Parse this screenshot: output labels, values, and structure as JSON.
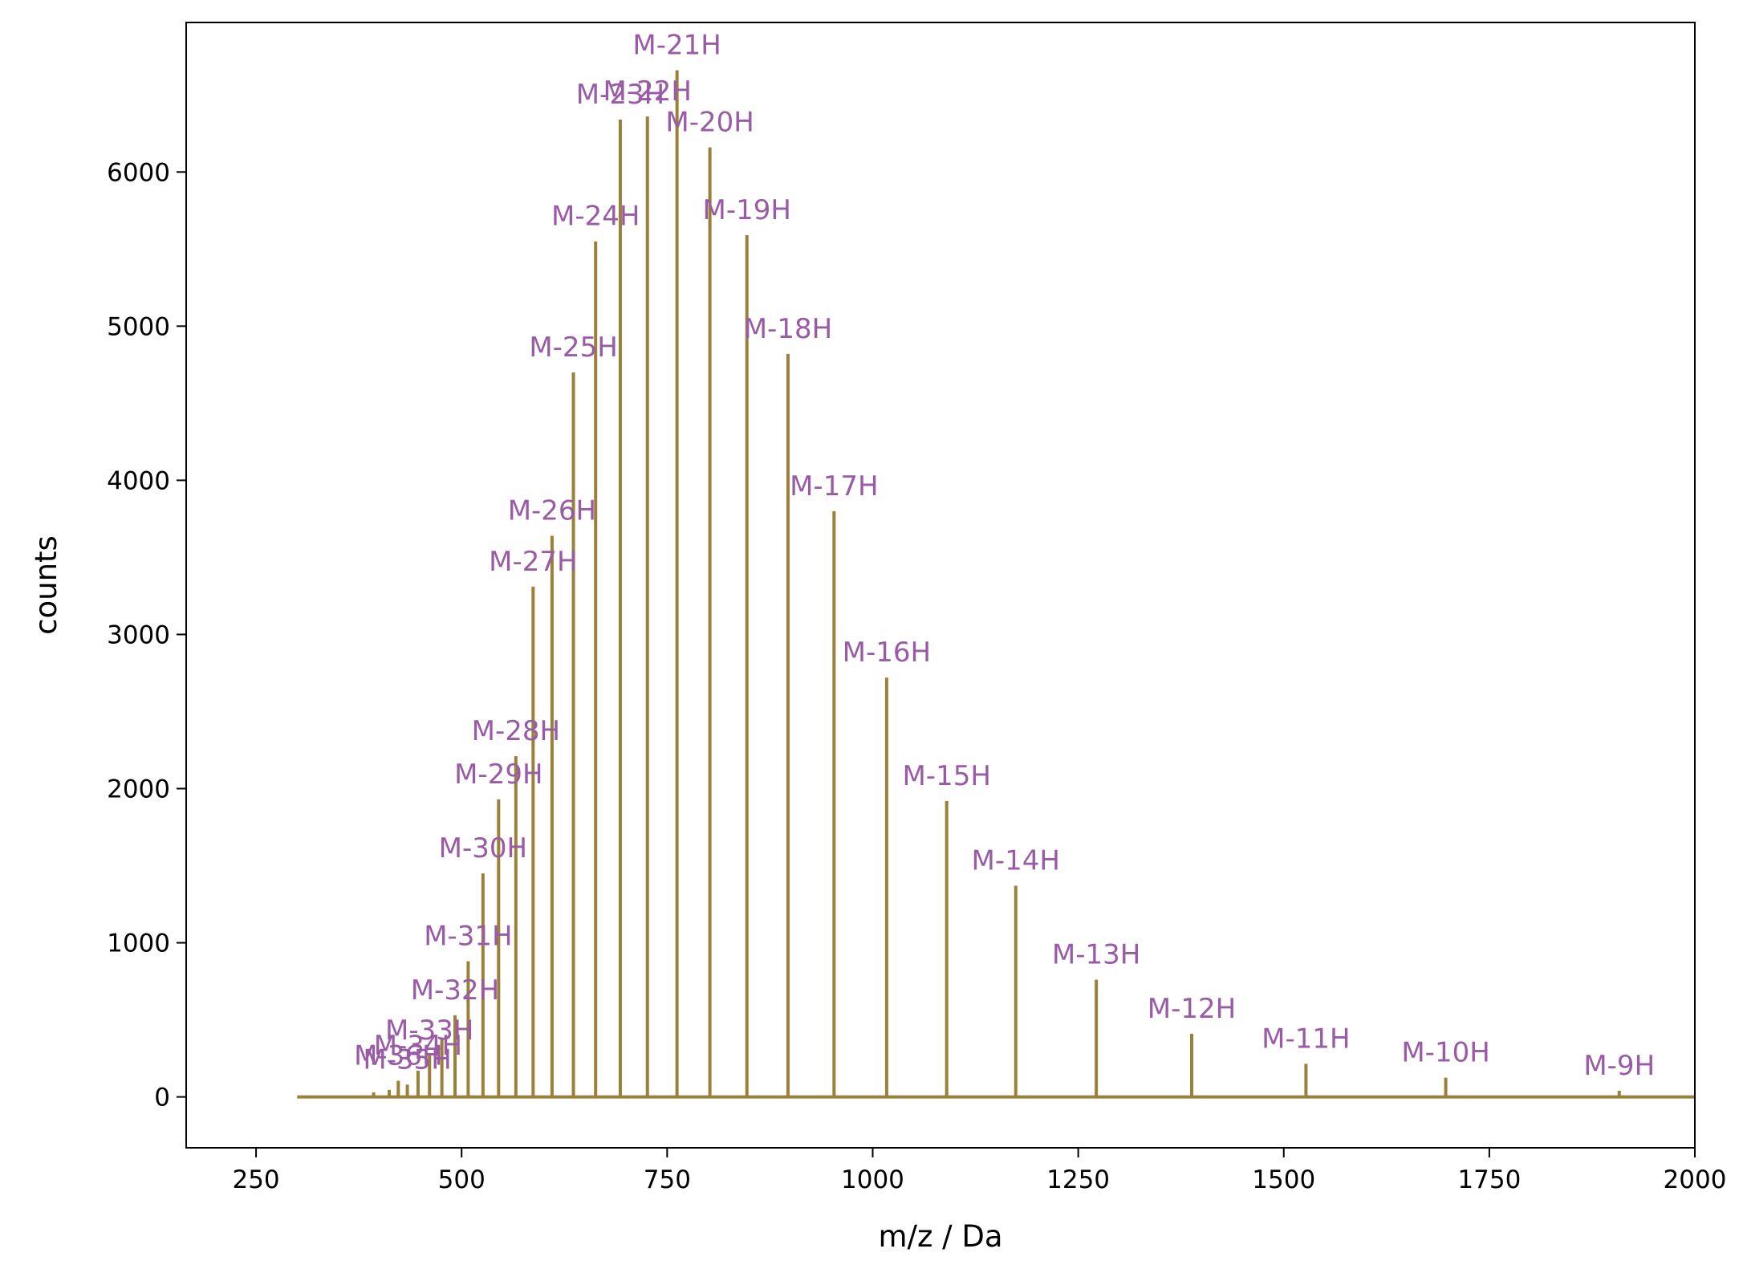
{
  "chart_data": {
    "type": "line",
    "title": "",
    "xlabel": "m/z / Da",
    "ylabel": "counts",
    "xlim": [
      165,
      2000
    ],
    "ylim": [
      -330,
      6970
    ],
    "x_ticks": [
      250,
      500,
      750,
      1000,
      1250,
      1500,
      1750,
      2000
    ],
    "y_ticks": [
      0,
      1000,
      2000,
      3000,
      4000,
      5000,
      6000
    ],
    "grid": false,
    "baseline_range": [
      300,
      2000
    ],
    "colors": {
      "spectrum": "#9a8039",
      "labels": "#9a5ba6",
      "axes": "#000000"
    },
    "peaks": [
      {
        "x": 393,
        "y": 30
      },
      {
        "x": 412,
        "y": 45
      },
      {
        "x": 423,
        "y": 105,
        "label": "M-36H"
      },
      {
        "x": 434,
        "y": 80,
        "label": "M-35H"
      },
      {
        "x": 447,
        "y": 170,
        "label": "M-34H"
      },
      {
        "x": 461,
        "y": 270,
        "label": "M-33H"
      },
      {
        "x": 476,
        "y": 375
      },
      {
        "x": 492,
        "y": 530,
        "label": "M-32H"
      },
      {
        "x": 508,
        "y": 880,
        "label": "M-31H"
      },
      {
        "x": 526,
        "y": 1450,
        "label": "M-30H"
      },
      {
        "x": 545,
        "y": 1930,
        "label": "M-29H"
      },
      {
        "x": 566,
        "y": 2210,
        "label": "M-28H"
      },
      {
        "x": 587,
        "y": 3310,
        "label": "M-27H"
      },
      {
        "x": 610,
        "y": 3640,
        "label": "M-26H"
      },
      {
        "x": 636,
        "y": 4700,
        "label": "M-25H"
      },
      {
        "x": 663,
        "y": 5550,
        "label": "M-24H"
      },
      {
        "x": 693,
        "y": 6340,
        "label": "M-23H"
      },
      {
        "x": 726,
        "y": 6360,
        "label": "M-22H"
      },
      {
        "x": 762,
        "y": 6660,
        "label": "M-21H"
      },
      {
        "x": 802,
        "y": 6160,
        "label": "M-20H"
      },
      {
        "x": 847,
        "y": 5590,
        "label": "M-19H"
      },
      {
        "x": 897,
        "y": 4820,
        "label": "M-18H"
      },
      {
        "x": 953,
        "y": 3800,
        "label": "M-17H"
      },
      {
        "x": 1017,
        "y": 2720,
        "label": "M-16H"
      },
      {
        "x": 1090,
        "y": 1920,
        "label": "M-15H"
      },
      {
        "x": 1174,
        "y": 1370,
        "label": "M-14H"
      },
      {
        "x": 1272,
        "y": 760,
        "label": "M-13H"
      },
      {
        "x": 1388,
        "y": 410,
        "label": "M-12H"
      },
      {
        "x": 1527,
        "y": 215,
        "label": "M-11H"
      },
      {
        "x": 1697,
        "y": 125,
        "label": "M-10H"
      },
      {
        "x": 1908,
        "y": 40,
        "label": "M-9H"
      }
    ]
  }
}
